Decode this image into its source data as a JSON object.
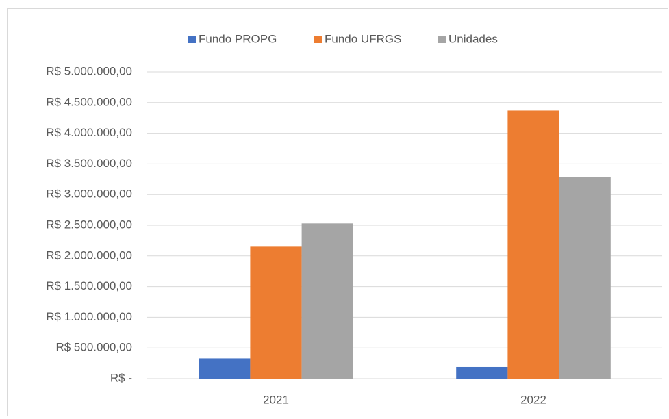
{
  "chart_data": {
    "type": "bar",
    "categories": [
      "2021",
      "2022"
    ],
    "series": [
      {
        "name": "Fundo PROPG",
        "color": "#4472c4",
        "values": [
          330000,
          190000
        ]
      },
      {
        "name": "Fundo UFRGS",
        "color": "#ed7d31",
        "values": [
          2150000,
          4370000
        ]
      },
      {
        "name": "Unidades",
        "color": "#a5a5a5",
        "values": [
          2530000,
          3290000
        ]
      }
    ],
    "ylim": [
      0,
      5000000
    ],
    "yticks": [
      {
        "value": 0,
        "label": "R$ -"
      },
      {
        "value": 500000,
        "label": "R$ 500.000,00"
      },
      {
        "value": 1000000,
        "label": "R$ 1.000.000,00"
      },
      {
        "value": 1500000,
        "label": "R$ 1.500.000,00"
      },
      {
        "value": 2000000,
        "label": "R$ 2.000.000,00"
      },
      {
        "value": 2500000,
        "label": "R$ 2.500.000,00"
      },
      {
        "value": 3000000,
        "label": "R$ 3.000.000,00"
      },
      {
        "value": 3500000,
        "label": "R$ 3.500.000,00"
      },
      {
        "value": 4000000,
        "label": "R$ 4.000.000,00"
      },
      {
        "value": 4500000,
        "label": "R$ 4.500.000,00"
      },
      {
        "value": 5000000,
        "label": "R$ 5.000.000,00"
      }
    ],
    "grid": true,
    "legend": "top"
  }
}
